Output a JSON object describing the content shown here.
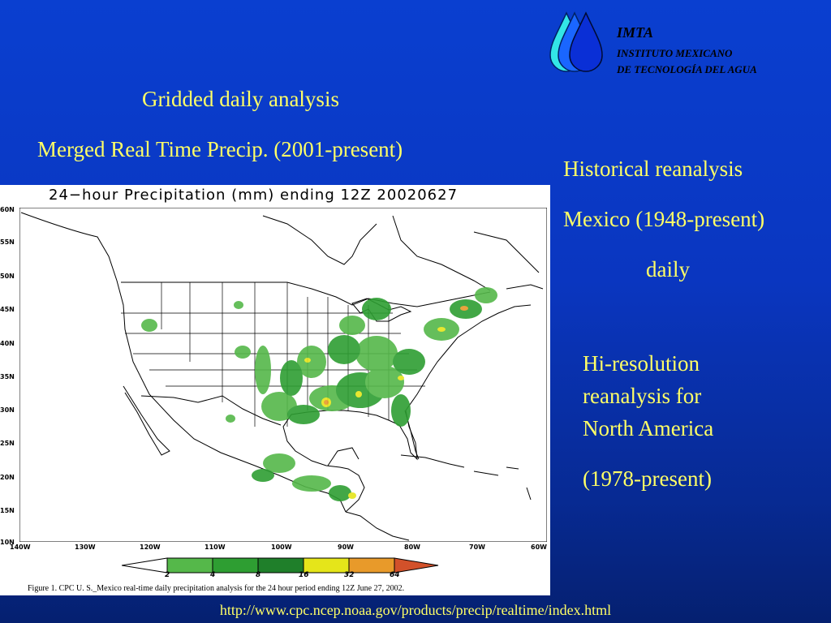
{
  "header": {
    "logo_name": "IMTA",
    "logo_line1": "INSTITUTO MEXICANO",
    "logo_line2": "DE TECNOLOGÍA DEL AGUA"
  },
  "left_title": {
    "line1": "Gridded daily analysis",
    "line2": "Merged Real Time Precip. (2001-present)"
  },
  "right_block1": {
    "line1": "Historical reanalysis",
    "line2": "Mexico (1948-present)",
    "line3": "daily"
  },
  "right_block2": {
    "line1": "Hi-resolution",
    "line2": "reanalysis for",
    "line3": "North America",
    "line4": "(1978-present)"
  },
  "figure": {
    "title": "24−hour Precipitation (mm) ending 12Z 20020627",
    "lat_labels": [
      "60N",
      "55N",
      "50N",
      "45N",
      "40N",
      "35N",
      "30N",
      "25N",
      "20N",
      "15N",
      "10N"
    ],
    "lon_labels": [
      "140W",
      "130W",
      "120W",
      "110W",
      "100W",
      "90W",
      "80W",
      "70W",
      "60W"
    ],
    "legend_values": [
      "2",
      "4",
      "8",
      "16",
      "32",
      "64"
    ],
    "legend_colors": [
      "#ffffff",
      "#55b84a",
      "#2e9e32",
      "#1f7f2a",
      "#e5e51a",
      "#e89a2a",
      "#d2512a"
    ],
    "caption": "Figure 1. CPC  U. S._Mexico real-time daily precipitation analysis for the 24 hour period ending 12Z June 27, 2002."
  },
  "footer": {
    "url": "http://www.cpc.ncep.noaa.gov/products/precip/realtime/index.html"
  }
}
